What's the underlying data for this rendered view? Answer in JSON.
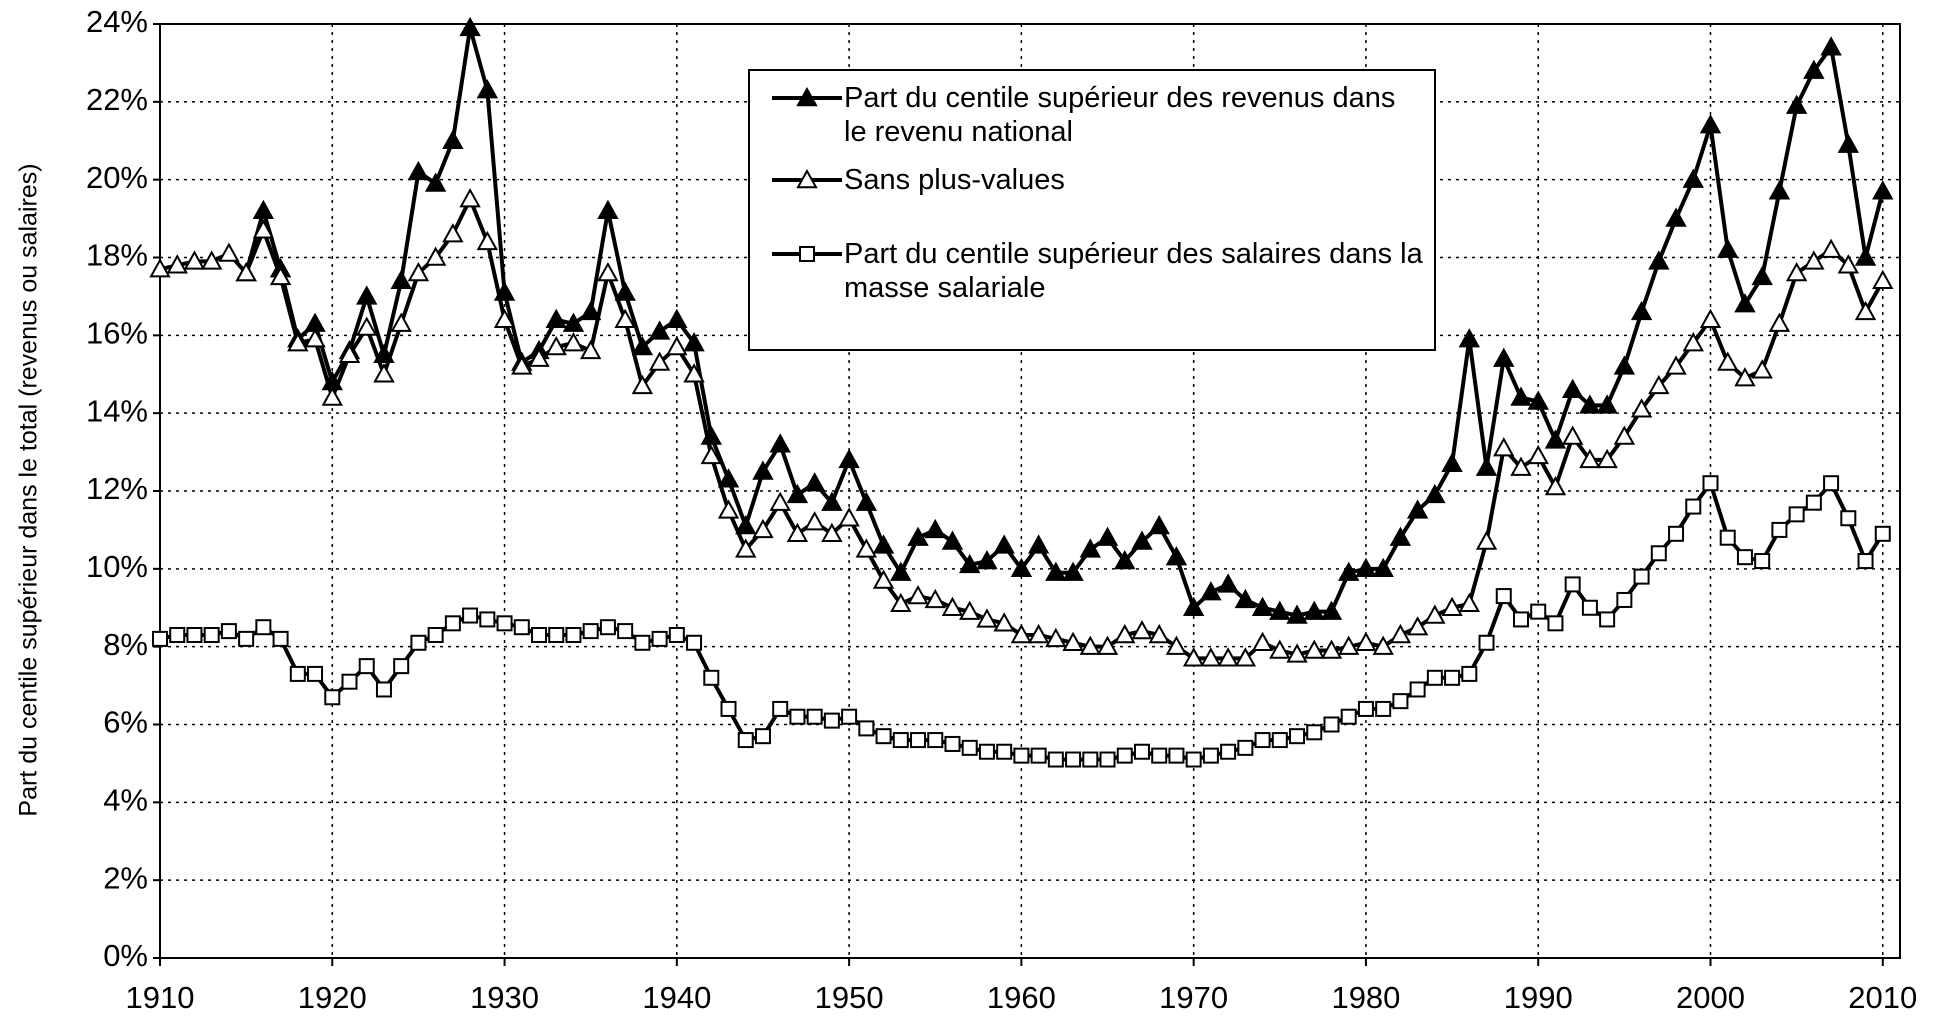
{
  "chart_data": {
    "type": "line",
    "y_label": "Part du centile supérieur dans le total (revenus ou salaires)",
    "x": [
      1910,
      1911,
      1912,
      1913,
      1914,
      1915,
      1916,
      1917,
      1918,
      1919,
      1920,
      1921,
      1922,
      1923,
      1924,
      1925,
      1926,
      1927,
      1928,
      1929,
      1930,
      1931,
      1932,
      1933,
      1934,
      1935,
      1936,
      1937,
      1938,
      1939,
      1940,
      1941,
      1942,
      1943,
      1944,
      1945,
      1946,
      1947,
      1948,
      1949,
      1950,
      1951,
      1952,
      1953,
      1954,
      1955,
      1956,
      1957,
      1958,
      1959,
      1960,
      1961,
      1962,
      1963,
      1964,
      1965,
      1966,
      1967,
      1968,
      1969,
      1970,
      1971,
      1972,
      1973,
      1974,
      1975,
      1976,
      1977,
      1978,
      1979,
      1980,
      1981,
      1982,
      1983,
      1984,
      1985,
      1986,
      1987,
      1988,
      1989,
      1990,
      1991,
      1992,
      1993,
      1994,
      1995,
      1996,
      1997,
      1998,
      1999,
      2000,
      2001,
      2002,
      2003,
      2004,
      2005,
      2006,
      2007,
      2008,
      2009,
      2010
    ],
    "series": [
      {
        "name": "Part du centile supérieur des revenus dans le revenu national",
        "color": "#000000",
        "marker": "triangle",
        "filled": true,
        "values": [
          null,
          null,
          null,
          null,
          null,
          17.6,
          19.2,
          17.7,
          15.9,
          16.3,
          14.8,
          15.6,
          17.0,
          15.5,
          17.4,
          20.2,
          19.9,
          21.0,
          23.9,
          22.3,
          17.1,
          15.3,
          15.6,
          16.4,
          16.3,
          16.6,
          19.2,
          17.1,
          15.7,
          16.1,
          16.4,
          15.8,
          13.4,
          12.3,
          11.1,
          12.5,
          13.2,
          11.9,
          12.2,
          11.7,
          12.8,
          11.7,
          10.6,
          9.9,
          10.8,
          11.0,
          10.7,
          10.1,
          10.2,
          10.6,
          10.0,
          10.6,
          9.9,
          9.9,
          10.5,
          10.8,
          10.2,
          10.7,
          11.1,
          10.3,
          9.0,
          9.4,
          9.6,
          9.2,
          9.0,
          8.9,
          8.8,
          8.9,
          8.9,
          9.9,
          10.0,
          10.0,
          10.8,
          11.5,
          11.9,
          12.7,
          15.9,
          12.6,
          15.4,
          14.4,
          14.3,
          13.3,
          14.6,
          14.2,
          14.2,
          15.2,
          16.6,
          17.9,
          19.0,
          20.0,
          21.4,
          18.2,
          16.8,
          17.5,
          19.7,
          21.9,
          22.8,
          23.4,
          20.9,
          18.0,
          19.7
        ]
      },
      {
        "name": "Sans plus-values",
        "color": "#000000",
        "marker": "triangle",
        "filled": false,
        "values": [
          17.7,
          17.8,
          17.9,
          17.9,
          18.1,
          17.6,
          18.7,
          17.5,
          15.8,
          15.9,
          14.4,
          15.5,
          16.2,
          15.0,
          16.3,
          17.6,
          18.0,
          18.6,
          19.5,
          18.4,
          16.4,
          15.2,
          15.4,
          15.7,
          15.8,
          15.6,
          17.6,
          16.4,
          14.7,
          15.3,
          15.7,
          15.0,
          12.9,
          11.5,
          10.5,
          11.0,
          11.7,
          10.9,
          11.2,
          10.9,
          11.3,
          10.5,
          9.7,
          9.1,
          9.3,
          9.2,
          9.0,
          8.9,
          8.7,
          8.6,
          8.3,
          8.3,
          8.2,
          8.1,
          8.0,
          8.0,
          8.3,
          8.4,
          8.3,
          8.0,
          7.7,
          7.7,
          7.7,
          7.7,
          8.1,
          7.9,
          7.8,
          7.9,
          7.9,
          8.0,
          8.1,
          8.0,
          8.3,
          8.5,
          8.8,
          9.0,
          9.1,
          10.7,
          13.1,
          12.6,
          12.9,
          12.1,
          13.4,
          12.8,
          12.8,
          13.4,
          14.1,
          14.7,
          15.2,
          15.8,
          16.4,
          15.3,
          14.9,
          15.1,
          16.3,
          17.6,
          17.9,
          18.2,
          17.8,
          16.6,
          17.4
        ]
      },
      {
        "name": "Part du centile supérieur des salaires dans la masse salariale",
        "color": "#000000",
        "marker": "square",
        "filled": false,
        "values": [
          8.2,
          8.3,
          8.3,
          8.3,
          8.4,
          8.2,
          8.5,
          8.2,
          7.3,
          7.3,
          6.7,
          7.1,
          7.5,
          6.9,
          7.5,
          8.1,
          8.3,
          8.6,
          8.8,
          8.7,
          8.6,
          8.5,
          8.3,
          8.3,
          8.3,
          8.4,
          8.5,
          8.4,
          8.1,
          8.2,
          8.3,
          8.1,
          7.2,
          6.4,
          5.6,
          5.7,
          6.4,
          6.2,
          6.2,
          6.1,
          6.2,
          5.9,
          5.7,
          5.6,
          5.6,
          5.6,
          5.5,
          5.4,
          5.3,
          5.3,
          5.2,
          5.2,
          5.1,
          5.1,
          5.1,
          5.1,
          5.2,
          5.3,
          5.2,
          5.2,
          5.1,
          5.2,
          5.3,
          5.4,
          5.6,
          5.6,
          5.7,
          5.8,
          6.0,
          6.2,
          6.4,
          6.4,
          6.6,
          6.9,
          7.2,
          7.2,
          7.3,
          8.1,
          9.3,
          8.7,
          8.9,
          8.6,
          9.6,
          9.0,
          8.7,
          9.2,
          9.8,
          10.4,
          10.9,
          11.6,
          12.2,
          10.8,
          10.3,
          10.2,
          11.0,
          11.4,
          11.7,
          12.2,
          11.3,
          10.2,
          10.9
        ]
      }
    ],
    "xlim": [
      1910,
      2011
    ],
    "ylim": [
      0,
      24
    ],
    "xticks": [
      1910,
      1920,
      1930,
      1940,
      1950,
      1960,
      1970,
      1980,
      1990,
      2000,
      2010
    ],
    "yticks": [
      {
        "value": 0,
        "label": "0%"
      },
      {
        "value": 2,
        "label": "2%"
      },
      {
        "value": 4,
        "label": "4%"
      },
      {
        "value": 6,
        "label": "6%"
      },
      {
        "value": 8,
        "label": "8%"
      },
      {
        "value": 10,
        "label": "10%"
      },
      {
        "value": 12,
        "label": "12%"
      },
      {
        "value": 14,
        "label": "14%"
      },
      {
        "value": 16,
        "label": "16%"
      },
      {
        "value": 18,
        "label": "18%"
      },
      {
        "value": 20,
        "label": "20%"
      },
      {
        "value": 22,
        "label": "22%"
      },
      {
        "value": 24,
        "label": "24%"
      }
    ],
    "grid": true,
    "legend": "top-center"
  }
}
